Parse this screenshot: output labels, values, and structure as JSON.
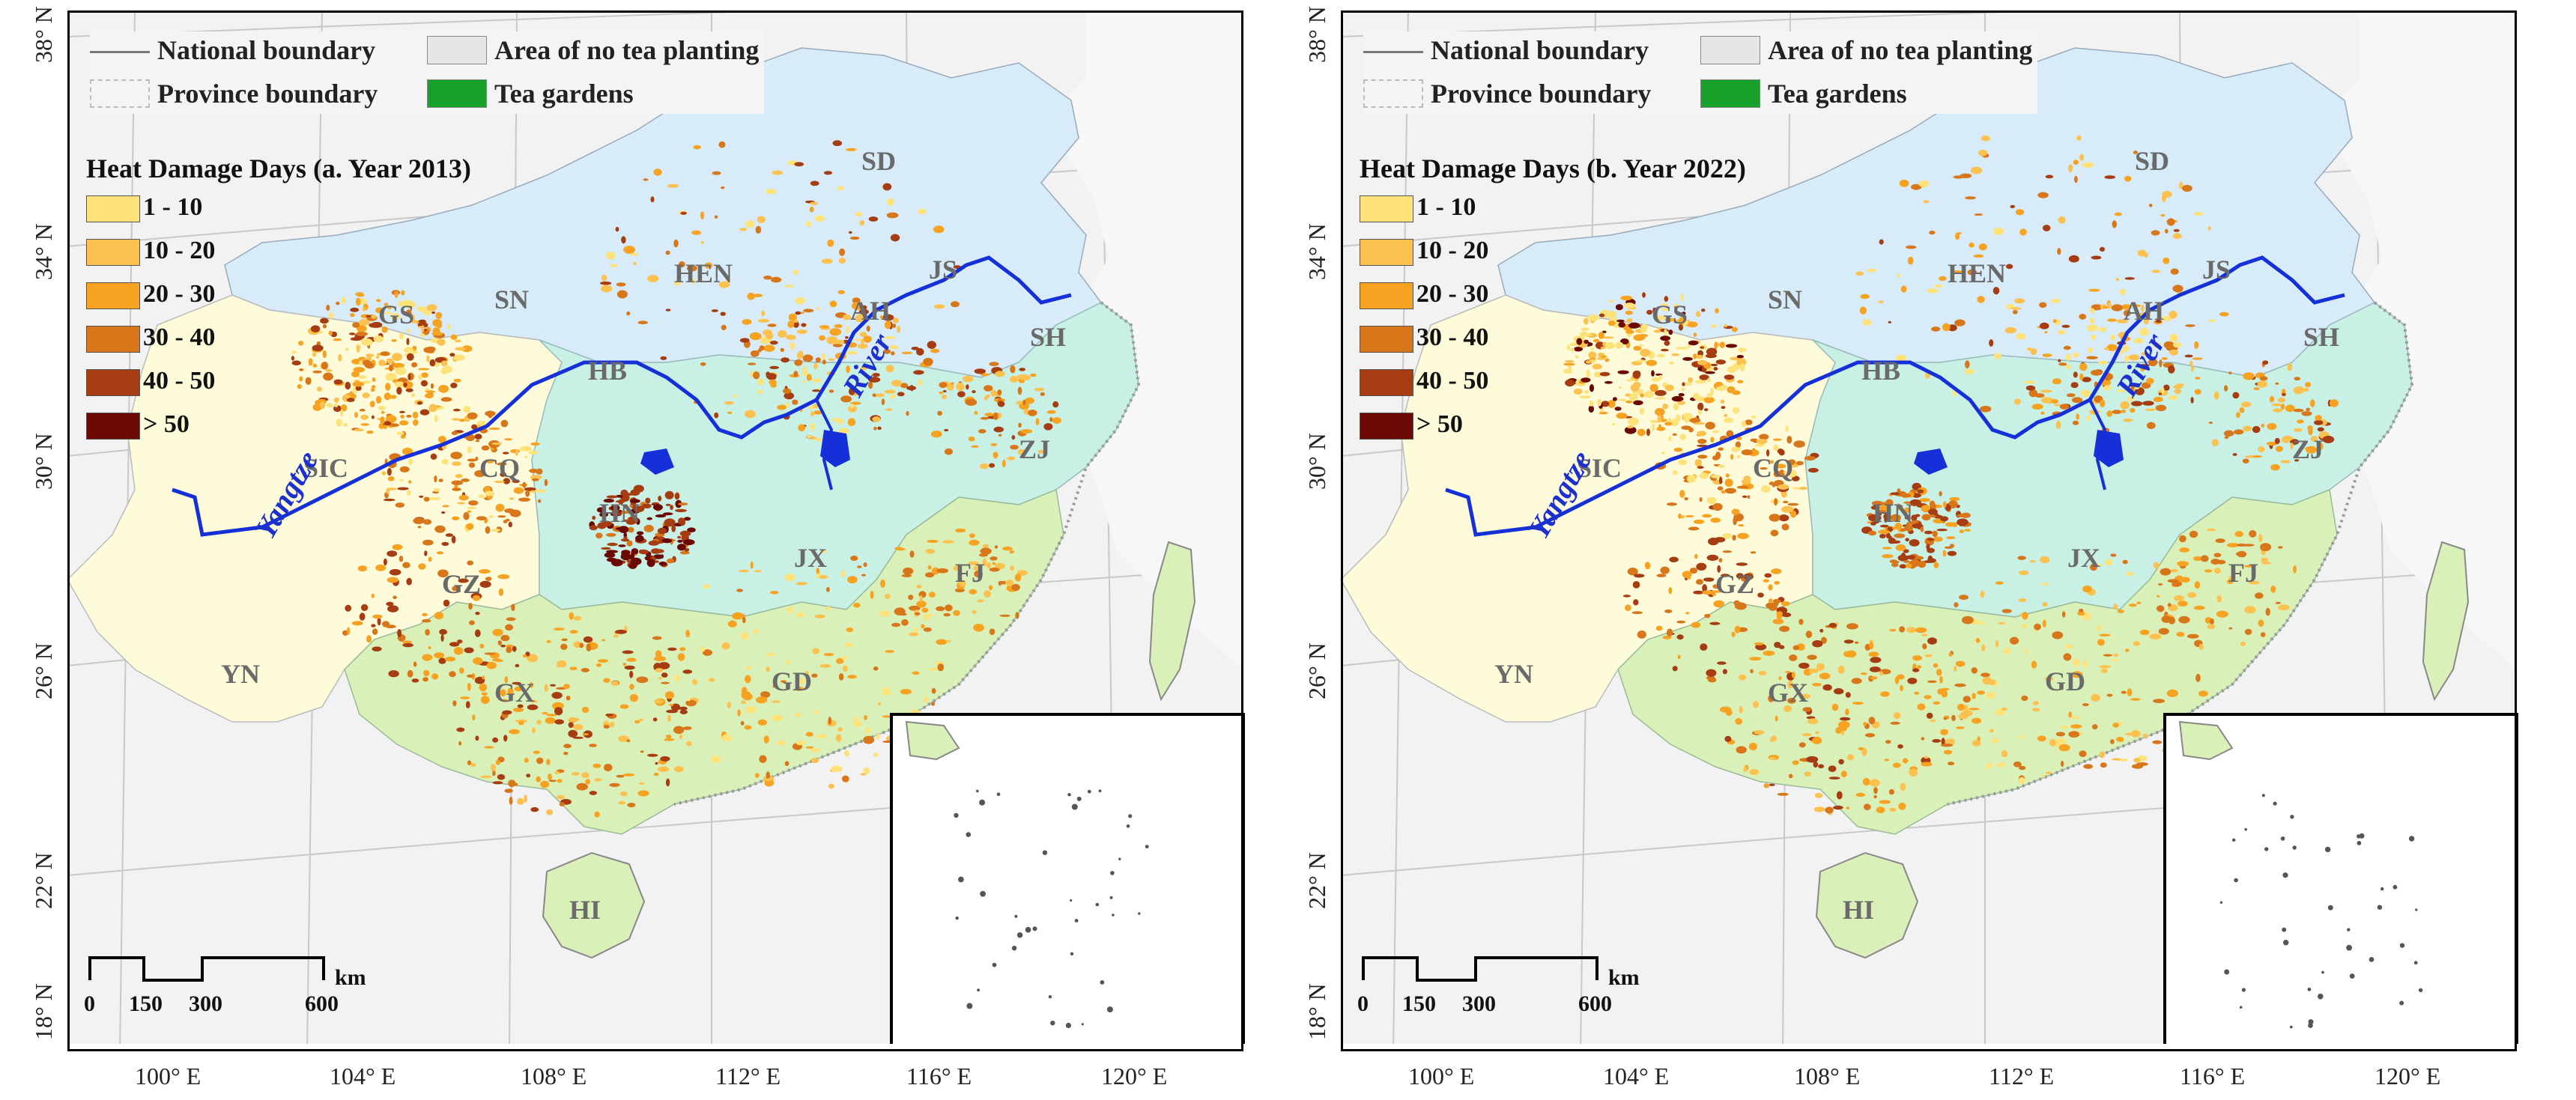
{
  "legend": {
    "national_boundary": "National boundary",
    "province_boundary": "Province boundary",
    "no_tea": "Area of no tea planting",
    "tea_gardens": "Tea gardens",
    "classes": [
      {
        "label": "1 - 10",
        "color": "#ffe27a"
      },
      {
        "label": "10 - 20",
        "color": "#fdc150"
      },
      {
        "label": "20 - 30",
        "color": "#f7a321"
      },
      {
        "label": "30 - 40",
        "color": "#d8761a"
      },
      {
        "label": "40 - 50",
        "color": "#a63c12"
      },
      {
        "label": "> 50",
        "color": "#6b0a05"
      }
    ],
    "colors": {
      "no_tea": "#e6e6e6",
      "tea_gardens": "#18a12a",
      "national": "#777777"
    }
  },
  "panels": [
    {
      "title": "Heat Damage Days (a. Year 2013)"
    },
    {
      "title": "Heat Damage Days (b. Year 2022)"
    }
  ],
  "lat_labels": [
    "38° N",
    "34° N",
    "30° N",
    "26° N",
    "22° N",
    "18° N"
  ],
  "lon_labels": [
    "100° E",
    "104° E",
    "108° E",
    "112° E",
    "116° E",
    "120° E"
  ],
  "provinces": [
    "SD",
    "JS",
    "HEN",
    "AH",
    "SH",
    "GS",
    "SN",
    "HB",
    "SIC",
    "CQ",
    "ZJ",
    "HN",
    "JX",
    "FJ",
    "GZ",
    "YN",
    "GX",
    "GD",
    "HI"
  ],
  "rivers": {
    "yangtze": "Yangtze",
    "river": "River"
  },
  "scale": {
    "ticks": [
      "0",
      "150",
      "300",
      "600"
    ],
    "unit": "km"
  },
  "region_colors": {
    "north": "#d7ecf8",
    "middle": "#c9f0e4",
    "southwest": "#fdfbd9",
    "south": "#daf0b9",
    "background": "#f2f2f2",
    "river": "#1530d8"
  }
}
